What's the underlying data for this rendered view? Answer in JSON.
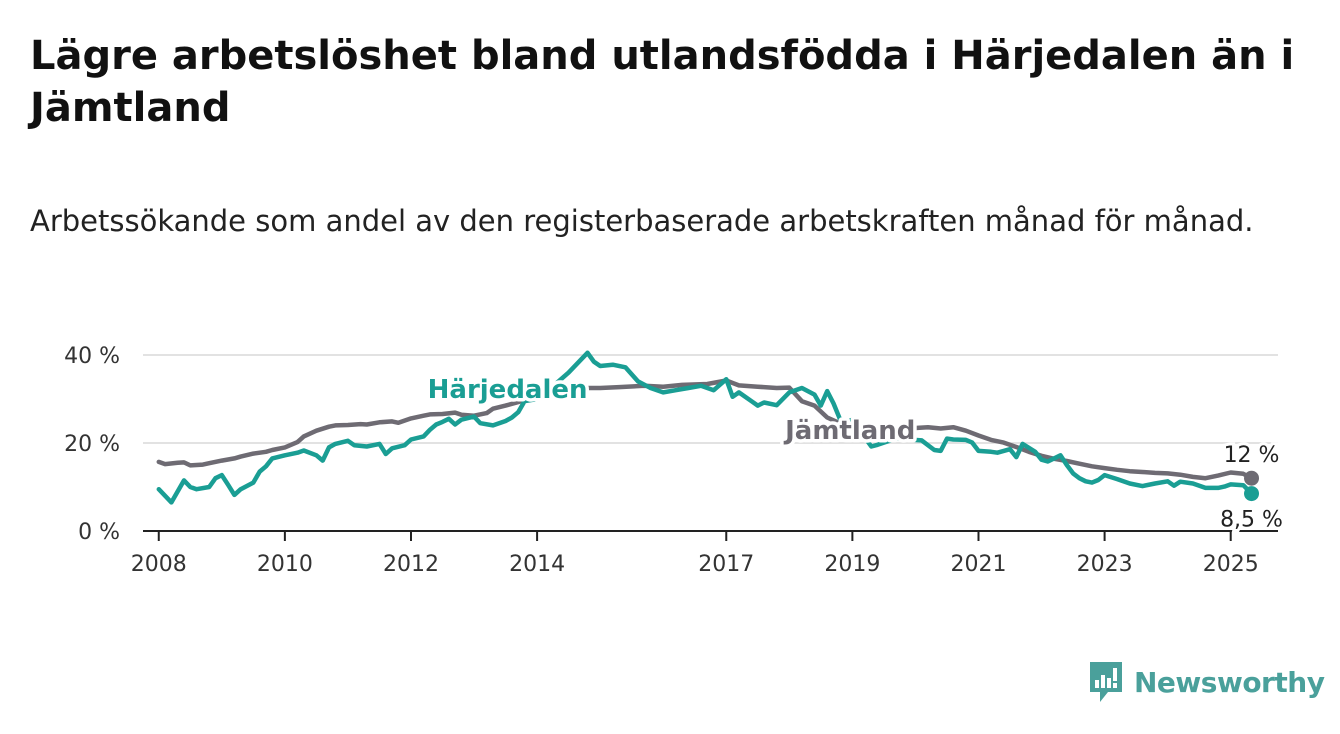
{
  "header": {
    "title": "Lägre arbetslöshet bland utlandsfödda i Härjedalen än i Jämtland",
    "subtitle": "Arbetssökande som andel av den registerbaserade arbetskraften månad för månad."
  },
  "brand": {
    "name": "Newsworthy",
    "color": "#4aa09b",
    "icon": "newsworthy-logo-icon"
  },
  "chart_data": {
    "type": "line",
    "title": "Lägre arbetslöshet bland utlandsfödda i Härjedalen än i Jämtland",
    "subtitle": "Arbetssökande som andel av den registerbaserade arbetskraften månad för månad.",
    "xlabel": "",
    "ylabel": "",
    "xlim": [
      2007.75,
      2025.75
    ],
    "ylim": [
      0,
      40
    ],
    "x_ticks": [
      2008,
      2010,
      2012,
      2014,
      2017,
      2019,
      2021,
      2023,
      2025
    ],
    "x_tick_labels": [
      "2008",
      "2010",
      "2012",
      "2014",
      "2017",
      "2019",
      "2021",
      "2023",
      "2025"
    ],
    "y_ticks": [
      0,
      20,
      40
    ],
    "y_tick_labels": [
      "0 %",
      "20 %",
      "40 %"
    ],
    "grid": "horizontal",
    "series": [
      {
        "name": "Jämtland",
        "color": "#6e6b73",
        "end_label": "12 %",
        "points": [
          [
            2008.0,
            15.7
          ],
          [
            2008.1,
            15.2
          ],
          [
            2008.3,
            15.5
          ],
          [
            2008.4,
            15.6
          ],
          [
            2008.5,
            14.9
          ],
          [
            2008.7,
            15.1
          ],
          [
            2008.8,
            15.4
          ],
          [
            2009.0,
            16.0
          ],
          [
            2009.2,
            16.5
          ],
          [
            2009.3,
            16.9
          ],
          [
            2009.5,
            17.6
          ],
          [
            2009.7,
            18.0
          ],
          [
            2009.8,
            18.4
          ],
          [
            2010.0,
            19.0
          ],
          [
            2010.2,
            20.2
          ],
          [
            2010.3,
            21.5
          ],
          [
            2010.5,
            22.8
          ],
          [
            2010.7,
            23.7
          ],
          [
            2010.8,
            24.0
          ],
          [
            2011.0,
            24.1
          ],
          [
            2011.2,
            24.3
          ],
          [
            2011.3,
            24.2
          ],
          [
            2011.5,
            24.7
          ],
          [
            2011.7,
            24.9
          ],
          [
            2011.8,
            24.6
          ],
          [
            2012.0,
            25.6
          ],
          [
            2012.2,
            26.2
          ],
          [
            2012.3,
            26.5
          ],
          [
            2012.5,
            26.6
          ],
          [
            2012.7,
            26.9
          ],
          [
            2012.8,
            26.4
          ],
          [
            2013.0,
            26.2
          ],
          [
            2013.2,
            26.8
          ],
          [
            2013.3,
            27.8
          ],
          [
            2013.5,
            28.5
          ],
          [
            2013.7,
            29.3
          ],
          [
            2013.8,
            29.8
          ],
          [
            2014.0,
            30.2
          ],
          [
            2014.2,
            30.8
          ],
          [
            2014.3,
            31.5
          ],
          [
            2014.5,
            32.0
          ],
          [
            2014.7,
            32.2
          ],
          [
            2014.8,
            32.5
          ],
          [
            2015.0,
            32.5
          ],
          [
            2015.3,
            32.7
          ],
          [
            2015.7,
            33.0
          ],
          [
            2016.0,
            32.8
          ],
          [
            2016.3,
            33.2
          ],
          [
            2016.7,
            33.4
          ],
          [
            2017.0,
            34.2
          ],
          [
            2017.2,
            33.1
          ],
          [
            2017.5,
            32.8
          ],
          [
            2017.8,
            32.5
          ],
          [
            2018.0,
            32.6
          ],
          [
            2018.2,
            29.5
          ],
          [
            2018.4,
            28.5
          ],
          [
            2018.6,
            25.8
          ],
          [
            2018.8,
            24.5
          ],
          [
            2019.0,
            23.4
          ],
          [
            2019.2,
            23.1
          ],
          [
            2019.4,
            22.8
          ],
          [
            2019.6,
            23.3
          ],
          [
            2019.8,
            23.5
          ],
          [
            2020.0,
            23.4
          ],
          [
            2020.2,
            23.6
          ],
          [
            2020.4,
            23.3
          ],
          [
            2020.6,
            23.6
          ],
          [
            2020.8,
            22.8
          ],
          [
            2021.0,
            21.7
          ],
          [
            2021.2,
            20.7
          ],
          [
            2021.4,
            20.1
          ],
          [
            2021.6,
            19.1
          ],
          [
            2021.8,
            18.0
          ],
          [
            2022.0,
            17.1
          ],
          [
            2022.2,
            16.4
          ],
          [
            2022.4,
            15.9
          ],
          [
            2022.6,
            15.3
          ],
          [
            2022.8,
            14.7
          ],
          [
            2023.0,
            14.3
          ],
          [
            2023.2,
            13.9
          ],
          [
            2023.4,
            13.6
          ],
          [
            2023.6,
            13.4
          ],
          [
            2023.8,
            13.2
          ],
          [
            2024.0,
            13.1
          ],
          [
            2024.2,
            12.8
          ],
          [
            2024.4,
            12.3
          ],
          [
            2024.6,
            12.0
          ],
          [
            2024.8,
            12.6
          ],
          [
            2025.0,
            13.3
          ],
          [
            2025.2,
            13.0
          ],
          [
            2025.33,
            12.0
          ]
        ]
      },
      {
        "name": "Härjedalen",
        "color": "#1a9e94",
        "end_label": "8,5 %",
        "points": [
          [
            2008.0,
            9.5
          ],
          [
            2008.1,
            8.0
          ],
          [
            2008.2,
            6.5
          ],
          [
            2008.3,
            9.0
          ],
          [
            2008.4,
            11.5
          ],
          [
            2008.5,
            10.0
          ],
          [
            2008.6,
            9.5
          ],
          [
            2008.8,
            10.0
          ],
          [
            2008.9,
            12.0
          ],
          [
            2009.0,
            12.7
          ],
          [
            2009.1,
            10.5
          ],
          [
            2009.2,
            8.2
          ],
          [
            2009.3,
            9.5
          ],
          [
            2009.5,
            11.0
          ],
          [
            2009.6,
            13.5
          ],
          [
            2009.7,
            14.7
          ],
          [
            2009.8,
            16.5
          ],
          [
            2010.0,
            17.2
          ],
          [
            2010.2,
            17.8
          ],
          [
            2010.3,
            18.3
          ],
          [
            2010.5,
            17.2
          ],
          [
            2010.6,
            16.0
          ],
          [
            2010.7,
            19.0
          ],
          [
            2010.8,
            19.8
          ],
          [
            2011.0,
            20.5
          ],
          [
            2011.1,
            19.5
          ],
          [
            2011.3,
            19.2
          ],
          [
            2011.5,
            19.8
          ],
          [
            2011.6,
            17.5
          ],
          [
            2011.7,
            18.8
          ],
          [
            2011.9,
            19.5
          ],
          [
            2012.0,
            20.8
          ],
          [
            2012.2,
            21.5
          ],
          [
            2012.3,
            23.0
          ],
          [
            2012.4,
            24.2
          ],
          [
            2012.5,
            24.8
          ],
          [
            2012.6,
            25.5
          ],
          [
            2012.7,
            24.2
          ],
          [
            2012.8,
            25.3
          ],
          [
            2013.0,
            26.0
          ],
          [
            2013.1,
            24.5
          ],
          [
            2013.3,
            24.0
          ],
          [
            2013.5,
            25.0
          ],
          [
            2013.6,
            25.8
          ],
          [
            2013.7,
            27.0
          ],
          [
            2013.8,
            29.5
          ],
          [
            2014.0,
            30.0
          ],
          [
            2014.2,
            30.5
          ],
          [
            2014.3,
            33.5
          ],
          [
            2014.5,
            36.0
          ],
          [
            2014.8,
            40.5
          ],
          [
            2014.9,
            38.5
          ],
          [
            2015.0,
            37.5
          ],
          [
            2015.2,
            37.8
          ],
          [
            2015.4,
            37.2
          ],
          [
            2015.6,
            34.0
          ],
          [
            2015.8,
            32.5
          ],
          [
            2016.0,
            31.5
          ],
          [
            2016.2,
            32.0
          ],
          [
            2016.4,
            32.5
          ],
          [
            2016.6,
            33.0
          ],
          [
            2016.8,
            32.0
          ],
          [
            2017.0,
            34.5
          ],
          [
            2017.1,
            30.5
          ],
          [
            2017.2,
            31.5
          ],
          [
            2017.4,
            29.5
          ],
          [
            2017.5,
            28.5
          ],
          [
            2017.6,
            29.2
          ],
          [
            2017.8,
            28.6
          ],
          [
            2018.0,
            31.5
          ],
          [
            2018.2,
            32.5
          ],
          [
            2018.4,
            31.0
          ],
          [
            2018.5,
            28.5
          ],
          [
            2018.6,
            31.8
          ],
          [
            2018.7,
            29.0
          ],
          [
            2018.8,
            25.5
          ],
          [
            2018.9,
            24.8
          ],
          [
            2019.0,
            25.3
          ],
          [
            2019.2,
            21.2
          ],
          [
            2019.3,
            19.2
          ],
          [
            2019.4,
            19.6
          ],
          [
            2019.5,
            20.1
          ],
          [
            2019.7,
            21.0
          ],
          [
            2019.9,
            20.8
          ],
          [
            2020.1,
            20.6
          ],
          [
            2020.3,
            18.4
          ],
          [
            2020.4,
            18.2
          ],
          [
            2020.5,
            21.0
          ],
          [
            2020.6,
            20.8
          ],
          [
            2020.8,
            20.7
          ],
          [
            2020.9,
            20.1
          ],
          [
            2021.0,
            18.2
          ],
          [
            2021.2,
            18.0
          ],
          [
            2021.3,
            17.8
          ],
          [
            2021.5,
            18.6
          ],
          [
            2021.6,
            16.8
          ],
          [
            2021.7,
            19.8
          ],
          [
            2021.9,
            18.0
          ],
          [
            2022.0,
            16.2
          ],
          [
            2022.1,
            15.8
          ],
          [
            2022.3,
            17.2
          ],
          [
            2022.4,
            15.0
          ],
          [
            2022.5,
            13.1
          ],
          [
            2022.6,
            12.0
          ],
          [
            2022.7,
            11.3
          ],
          [
            2022.8,
            11.0
          ],
          [
            2022.9,
            11.6
          ],
          [
            2023.0,
            12.7
          ],
          [
            2023.2,
            11.8
          ],
          [
            2023.4,
            10.8
          ],
          [
            2023.6,
            10.2
          ],
          [
            2023.8,
            10.8
          ],
          [
            2024.0,
            11.3
          ],
          [
            2024.1,
            10.3
          ],
          [
            2024.2,
            11.2
          ],
          [
            2024.4,
            10.8
          ],
          [
            2024.6,
            9.8
          ],
          [
            2024.8,
            9.8
          ],
          [
            2024.9,
            10.1
          ],
          [
            2025.0,
            10.6
          ],
          [
            2025.2,
            10.4
          ],
          [
            2025.33,
            8.5
          ]
        ]
      }
    ]
  }
}
